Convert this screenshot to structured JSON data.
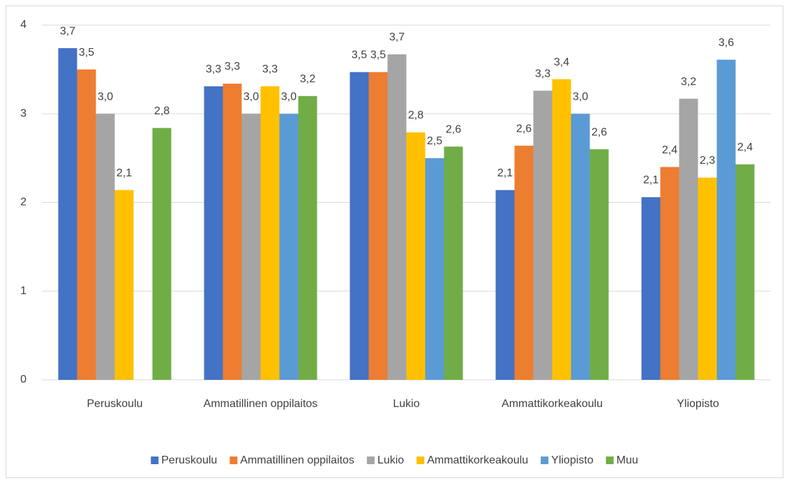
{
  "chart_data": {
    "type": "bar",
    "categories": [
      "Peruskoulu",
      "Ammatillinen oppilaitos",
      "Lukio",
      "Ammattikorkeakoulu",
      "Yliopisto"
    ],
    "series": [
      {
        "name": "Peruskoulu",
        "color": "#4472c4",
        "values": [
          3.74,
          3.31,
          3.47,
          2.14,
          2.06
        ],
        "value_labels": [
          "3,7",
          "3,3",
          "3,5",
          "2,1",
          "2,1"
        ]
      },
      {
        "name": "Ammatillinen oppilaitos",
        "color": "#ed7d31",
        "values": [
          3.5,
          3.34,
          3.47,
          2.64,
          2.4
        ],
        "value_labels": [
          "3,5",
          "3,3",
          "3,5",
          "2,6",
          "2,4"
        ]
      },
      {
        "name": "Lukio",
        "color": "#a5a5a5",
        "values": [
          3.0,
          3.0,
          3.67,
          3.26,
          3.17
        ],
        "value_labels": [
          "3,0",
          "3,0",
          "3,7",
          "3,3",
          "3,2"
        ]
      },
      {
        "name": "Ammattikorkeakoulu",
        "color": "#ffc000",
        "values": [
          2.14,
          3.31,
          2.79,
          3.39,
          2.28
        ],
        "value_labels": [
          "2,1",
          "3,3",
          "2,8",
          "3,4",
          "2,3"
        ]
      },
      {
        "name": "Yliopisto",
        "color": "#5b9bd5",
        "values": [
          null,
          3.0,
          2.5,
          3.0,
          3.61
        ],
        "value_labels": [
          null,
          "3,0",
          "2,5",
          "3,0",
          "3,6"
        ]
      },
      {
        "name": "Muu",
        "color": "#70ad47",
        "values": [
          2.84,
          3.2,
          2.63,
          2.6,
          2.43
        ],
        "value_labels": [
          "2,8",
          "3,2",
          "2,6",
          "2,6",
          "2,4"
        ]
      }
    ],
    "ylim": [
      0,
      4
    ],
    "yticks": [
      0,
      1,
      2,
      3,
      4
    ],
    "grid": true,
    "legend": "bottom"
  }
}
